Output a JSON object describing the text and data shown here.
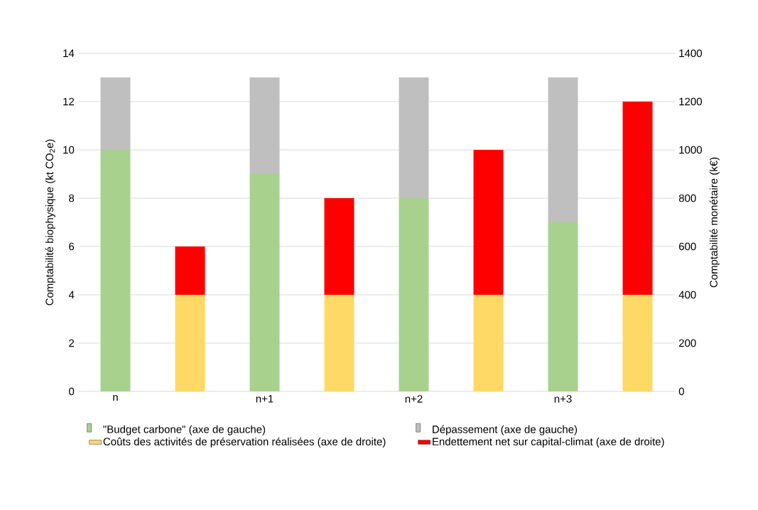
{
  "chart_data": {
    "type": "bar",
    "stacked": true,
    "ylabel": "Comptabilité biophysique (kt CO$_{2}$e)",
    "y2label": "Comptabilité monétaire (k€)",
    "categories": [
      "n",
      null,
      "n+1",
      null,
      "n+2",
      null,
      "n+3",
      null
    ],
    "series": [
      {
        "name": "\"Budget carbone\" (axe de gauche)",
        "color": "#a9d18e",
        "values": [
          10,
          null,
          9,
          null,
          8,
          null,
          7,
          null
        ]
      },
      {
        "name": "Dépassement (axe de gauche)",
        "color": "#bfbfbf",
        "values": [
          3,
          null,
          4,
          null,
          5,
          null,
          6,
          null
        ]
      },
      {
        "name": "Coûts des activités de préservation réalisées (axe de droite)",
        "color": "#ffd966",
        "axis": "y2",
        "values": [
          null,
          400,
          null,
          400,
          null,
          400,
          null,
          400
        ]
      },
      {
        "name": "Endettement net sur capital-climat (axe de droite)",
        "color": "#ff0000",
        "axis": "y2",
        "values": [
          null,
          200,
          null,
          400,
          null,
          600,
          null,
          800
        ]
      }
    ],
    "ylim": [
      0,
      14
    ],
    "yticks": [
      0,
      2,
      4,
      6,
      8,
      10,
      12,
      14
    ],
    "y2lim": [
      0,
      1400
    ],
    "y2ticks": [
      0,
      200,
      400,
      600,
      800,
      1000,
      1200,
      1400
    ],
    "grid": "y",
    "legend": "bottom"
  }
}
